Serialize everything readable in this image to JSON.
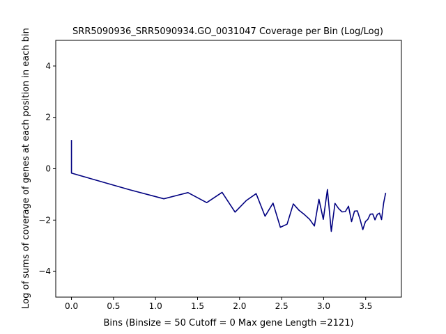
{
  "chart_data": {
    "type": "line",
    "title": "SRR5090936_SRR5090934.GO_0031047 Coverage per Bin (Log/Log)",
    "xlabel": "Bins  (Binsize = 50 Cutoff = 0 Max gene Length =2121)",
    "ylabel": "Log of sums of coverage of genes at each position in each bin",
    "xlim": [
      -0.187,
      3.925
    ],
    "ylim": [
      -5,
      5
    ],
    "xticks": [
      0.0,
      0.5,
      1.0,
      1.5,
      2.0,
      2.5,
      3.0,
      3.5
    ],
    "xtick_labels": [
      "0.0",
      "0.5",
      "1.0",
      "1.5",
      "2.0",
      "2.5",
      "3.0",
      "3.5"
    ],
    "yticks": [
      -4,
      -2,
      0,
      2,
      4
    ],
    "ytick_labels": [
      "−4",
      "−2",
      "0",
      "2",
      "4"
    ],
    "grid": false,
    "line_color": "#000080",
    "series": [
      {
        "x": [
          0.0,
          0.0,
          0.693,
          1.099,
          1.386,
          1.609,
          1.792,
          1.946,
          2.079,
          2.197,
          2.303,
          2.398,
          2.485,
          2.565,
          2.639,
          2.708,
          2.773,
          2.833,
          2.89,
          2.944,
          2.996,
          3.045,
          3.091,
          3.135,
          3.178,
          3.219,
          3.258,
          3.296,
          3.332,
          3.367,
          3.401,
          3.434,
          3.466,
          3.497,
          3.526,
          3.555,
          3.584,
          3.611,
          3.638,
          3.664,
          3.689,
          3.714,
          3.738
        ],
        "y": [
          1.12,
          -0.17,
          -0.82,
          -1.17,
          -0.93,
          -1.32,
          -0.92,
          -1.69,
          -1.24,
          -0.97,
          -1.85,
          -1.34,
          -2.28,
          -2.16,
          -1.37,
          -1.62,
          -1.79,
          -1.97,
          -2.23,
          -1.19,
          -1.97,
          -0.81,
          -2.44,
          -1.35,
          -1.55,
          -1.68,
          -1.67,
          -1.46,
          -2.06,
          -1.65,
          -1.64,
          -1.98,
          -2.37,
          -2.06,
          -1.97,
          -1.77,
          -1.76,
          -1.99,
          -1.78,
          -1.73,
          -1.98,
          -1.33,
          -0.94
        ]
      }
    ]
  }
}
